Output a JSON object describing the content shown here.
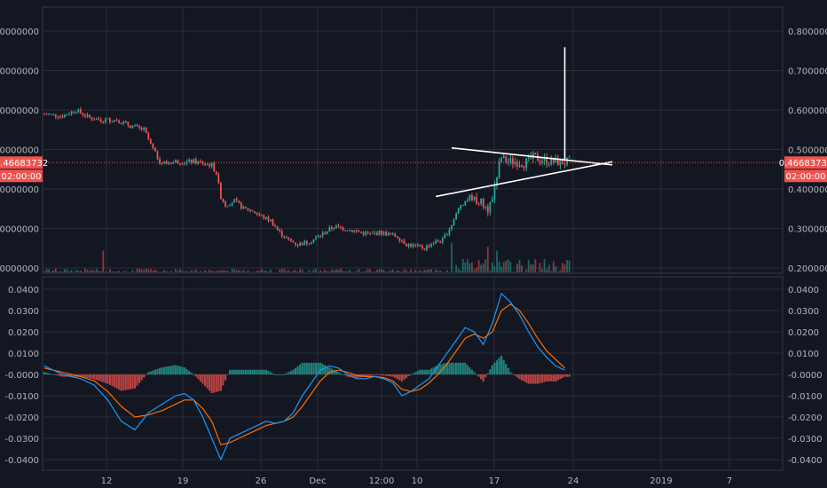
{
  "chart_data": [
    {
      "type": "candlestick",
      "pane": "price",
      "x_ticks": [
        "12",
        "19",
        "26",
        "Dec",
        "12:00",
        "10",
        "17",
        "24",
        "2019",
        "7"
      ],
      "y_ticks": [
        "0.80000000",
        "0.70000000",
        "0.60000000",
        "0.50000000",
        "0.40000000",
        "0.30000000",
        "0.20000000"
      ],
      "ylim": [
        0.2,
        0.8
      ],
      "last_price": "0.46683732",
      "countdown": "02:00:00",
      "up_color": "#26a69a",
      "down_color": "#ef5350",
      "price_path": [
        [
          0,
          0.59
        ],
        [
          8,
          0.585
        ],
        [
          14,
          0.6
        ],
        [
          20,
          0.58
        ],
        [
          26,
          0.575
        ],
        [
          32,
          0.575
        ],
        [
          38,
          0.56
        ],
        [
          44,
          0.55
        ],
        [
          48,
          0.5
        ],
        [
          51,
          0.47
        ],
        [
          54,
          0.465
        ],
        [
          58,
          0.47
        ],
        [
          62,
          0.468
        ],
        [
          66,
          0.47
        ],
        [
          70,
          0.465
        ],
        [
          74,
          0.46
        ],
        [
          76,
          0.44
        ],
        [
          78,
          0.38
        ],
        [
          80,
          0.36
        ],
        [
          84,
          0.37
        ],
        [
          88,
          0.35
        ],
        [
          92,
          0.345
        ],
        [
          96,
          0.33
        ],
        [
          100,
          0.32
        ],
        [
          104,
          0.29
        ],
        [
          108,
          0.27
        ],
        [
          112,
          0.26
        ],
        [
          116,
          0.265
        ],
        [
          120,
          0.275
        ],
        [
          124,
          0.29
        ],
        [
          128,
          0.305
        ],
        [
          132,
          0.3
        ],
        [
          136,
          0.295
        ],
        [
          140,
          0.29
        ],
        [
          144,
          0.285
        ],
        [
          148,
          0.29
        ],
        [
          152,
          0.285
        ],
        [
          156,
          0.28
        ],
        [
          160,
          0.26
        ],
        [
          164,
          0.255
        ],
        [
          168,
          0.25
        ],
        [
          172,
          0.265
        ],
        [
          176,
          0.27
        ],
        [
          180,
          0.31
        ],
        [
          184,
          0.36
        ],
        [
          188,
          0.38
        ],
        [
          192,
          0.37
        ],
        [
          196,
          0.35
        ],
        [
          198,
          0.38
        ],
        [
          200,
          0.44
        ],
        [
          202,
          0.48
        ],
        [
          204,
          0.47
        ],
        [
          208,
          0.47
        ],
        [
          212,
          0.465
        ],
        [
          216,
          0.48
        ],
        [
          220,
          0.475
        ],
        [
          224,
          0.47
        ],
        [
          228,
          0.468
        ],
        [
          232,
          0.468
        ]
      ],
      "volume_spikes": [
        [
          26,
          0.055
        ],
        [
          180,
          0.075
        ],
        [
          196,
          0.065
        ],
        [
          200,
          0.055
        ]
      ],
      "drawings": [
        {
          "type": "trendline",
          "from": [
            173,
            0.381
          ],
          "to": [
            251,
            0.469
          ]
        },
        {
          "type": "trendline",
          "from": [
            180,
            0.504
          ],
          "to": [
            251,
            0.461
          ]
        },
        {
          "type": "vertical-line",
          "x": 230,
          "from": 0.472,
          "to": 0.759
        }
      ]
    },
    {
      "type": "line",
      "pane": "macd",
      "y_ticks": [
        "0.0400",
        "0.0300",
        "0.0200",
        "0.0100",
        "-0.0000",
        "-0.0100",
        "-0.0200",
        "-0.0300",
        "-0.0400"
      ],
      "ylim": [
        -0.04,
        0.04
      ],
      "colors": {
        "macd": "#2196f3",
        "signal": "#ff6d00",
        "hist_up": "#26a69a",
        "hist_down": "#ef5350"
      },
      "macd": [
        [
          0,
          0.004
        ],
        [
          8,
          0.0
        ],
        [
          16,
          -0.002
        ],
        [
          22,
          -0.005
        ],
        [
          28,
          -0.012
        ],
        [
          34,
          -0.022
        ],
        [
          40,
          -0.026
        ],
        [
          46,
          -0.018
        ],
        [
          52,
          -0.014
        ],
        [
          58,
          -0.01
        ],
        [
          62,
          -0.009
        ],
        [
          66,
          -0.012
        ],
        [
          70,
          -0.02
        ],
        [
          74,
          -0.03
        ],
        [
          78,
          -0.04
        ],
        [
          82,
          -0.03
        ],
        [
          86,
          -0.028
        ],
        [
          90,
          -0.026
        ],
        [
          94,
          -0.024
        ],
        [
          98,
          -0.022
        ],
        [
          102,
          -0.023
        ],
        [
          106,
          -0.022
        ],
        [
          110,
          -0.018
        ],
        [
          114,
          -0.01
        ],
        [
          118,
          -0.004
        ],
        [
          122,
          0.002
        ],
        [
          126,
          0.004
        ],
        [
          130,
          0.003
        ],
        [
          134,
          0.0
        ],
        [
          138,
          -0.002
        ],
        [
          142,
          -0.002
        ],
        [
          146,
          -0.001
        ],
        [
          150,
          -0.002
        ],
        [
          154,
          -0.004
        ],
        [
          158,
          -0.01
        ],
        [
          162,
          -0.008
        ],
        [
          166,
          -0.005
        ],
        [
          170,
          -0.002
        ],
        [
          174,
          0.004
        ],
        [
          178,
          0.01
        ],
        [
          182,
          0.016
        ],
        [
          186,
          0.022
        ],
        [
          190,
          0.02
        ],
        [
          194,
          0.014
        ],
        [
          198,
          0.024
        ],
        [
          202,
          0.038
        ],
        [
          206,
          0.034
        ],
        [
          210,
          0.028
        ],
        [
          214,
          0.02
        ],
        [
          218,
          0.013
        ],
        [
          222,
          0.008
        ],
        [
          226,
          0.004
        ],
        [
          230,
          0.002
        ]
      ],
      "signal": [
        [
          0,
          0.003
        ],
        [
          8,
          0.001
        ],
        [
          16,
          -0.001
        ],
        [
          22,
          -0.003
        ],
        [
          28,
          -0.008
        ],
        [
          34,
          -0.015
        ],
        [
          40,
          -0.02
        ],
        [
          46,
          -0.019
        ],
        [
          52,
          -0.017
        ],
        [
          58,
          -0.014
        ],
        [
          62,
          -0.012
        ],
        [
          66,
          -0.012
        ],
        [
          70,
          -0.016
        ],
        [
          74,
          -0.022
        ],
        [
          78,
          -0.033
        ],
        [
          82,
          -0.032
        ],
        [
          86,
          -0.03
        ],
        [
          90,
          -0.028
        ],
        [
          94,
          -0.026
        ],
        [
          98,
          -0.024
        ],
        [
          102,
          -0.023
        ],
        [
          106,
          -0.022
        ],
        [
          110,
          -0.02
        ],
        [
          114,
          -0.015
        ],
        [
          118,
          -0.009
        ],
        [
          122,
          -0.003
        ],
        [
          126,
          0.001
        ],
        [
          130,
          0.002
        ],
        [
          134,
          0.001
        ],
        [
          138,
          -0.0005
        ],
        [
          142,
          -0.001
        ],
        [
          146,
          -0.001
        ],
        [
          150,
          -0.0015
        ],
        [
          154,
          -0.003
        ],
        [
          158,
          -0.007
        ],
        [
          162,
          -0.008
        ],
        [
          166,
          -0.007
        ],
        [
          170,
          -0.004
        ],
        [
          174,
          0.0
        ],
        [
          178,
          0.005
        ],
        [
          182,
          0.011
        ],
        [
          186,
          0.017
        ],
        [
          190,
          0.019
        ],
        [
          194,
          0.017
        ],
        [
          198,
          0.02
        ],
        [
          202,
          0.03
        ],
        [
          206,
          0.033
        ],
        [
          210,
          0.03
        ],
        [
          214,
          0.024
        ],
        [
          218,
          0.017
        ],
        [
          222,
          0.011
        ],
        [
          226,
          0.007
        ],
        [
          230,
          0.003
        ]
      ]
    }
  ]
}
